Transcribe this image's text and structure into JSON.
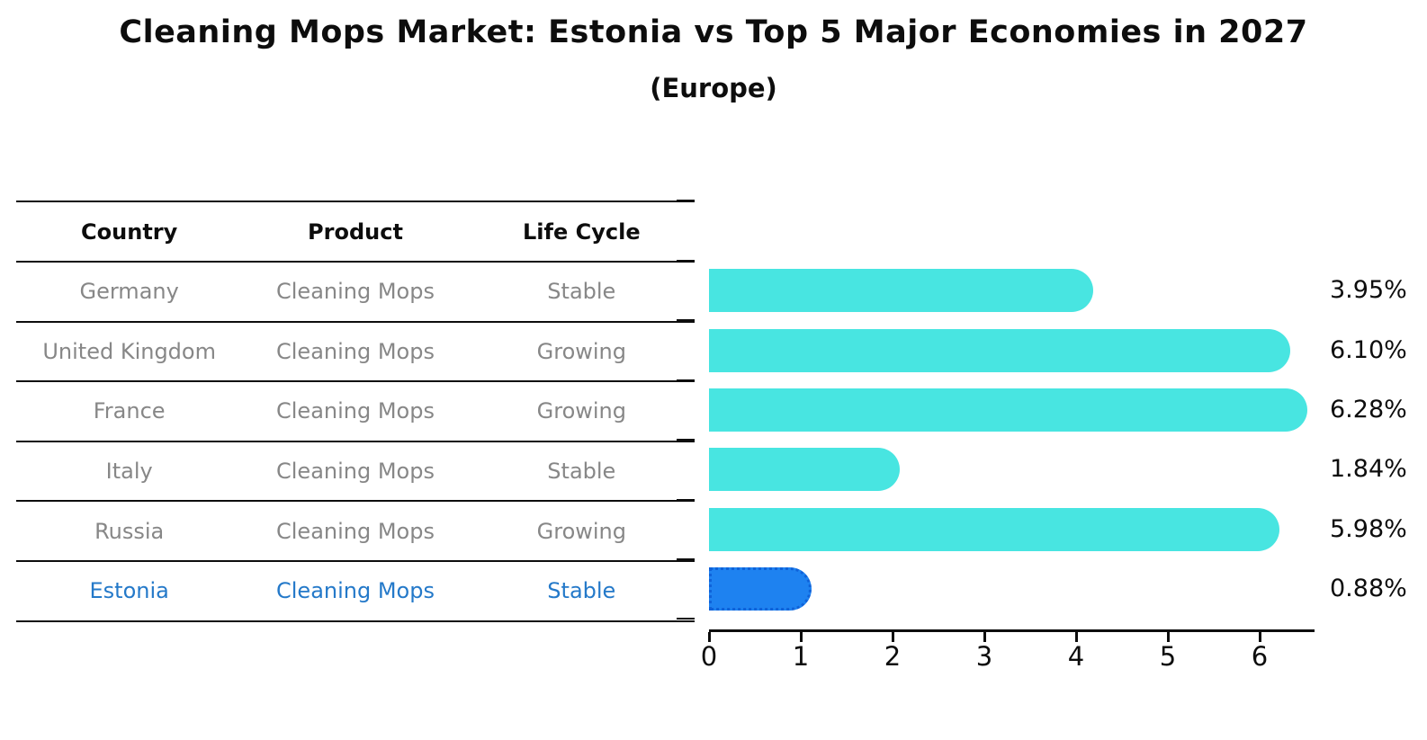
{
  "title": "Cleaning Mops Market: Estonia vs Top 5 Major Economies in 2027",
  "subtitle": "(Europe)",
  "table": {
    "headers": [
      "Country",
      "Product",
      "Life Cycle"
    ],
    "rows": [
      {
        "country": "Germany",
        "product": "Cleaning Mops",
        "life_cycle": "Stable",
        "highlight": false
      },
      {
        "country": "United Kingdom",
        "product": "Cleaning Mops",
        "life_cycle": "Growing",
        "highlight": false
      },
      {
        "country": "France",
        "product": "Cleaning Mops",
        "life_cycle": "Growing",
        "highlight": false
      },
      {
        "country": "Italy",
        "product": "Cleaning Mops",
        "life_cycle": "Stable",
        "highlight": false
      },
      {
        "country": "Russia",
        "product": "Cleaning Mops",
        "life_cycle": "Growing",
        "highlight": true
      }
    ],
    "highlight_row": {
      "country": "Estonia",
      "product": "Cleaning Mops",
      "life_cycle": "Stable"
    }
  },
  "chart_data": {
    "type": "bar",
    "orientation": "horizontal",
    "title": "Cleaning Mops Market: Estonia vs Top 5 Major Economies in 2027",
    "subtitle": "(Europe)",
    "categories": [
      "Germany",
      "United Kingdom",
      "France",
      "Italy",
      "Russia",
      "Estonia"
    ],
    "values": [
      3.95,
      6.1,
      6.28,
      1.84,
      5.98,
      0.88
    ],
    "value_labels": [
      "3.95%",
      "6.10%",
      "6.28%",
      "1.84%",
      "5.98%",
      "0.88%"
    ],
    "highlight_index": 5,
    "x_ticks": [
      "0",
      "1",
      "2",
      "3",
      "4",
      "5",
      "6"
    ],
    "xlim": [
      0,
      6.6
    ],
    "grid": false,
    "legend": false
  },
  "colors": {
    "bar": "#48e5e1",
    "highlight_bar": "#1e82f0",
    "highlight_bar_border": "#0f62d9",
    "highlight_text": "#2479c9",
    "muted_text": "#878787",
    "text": "#0d0d0d"
  }
}
